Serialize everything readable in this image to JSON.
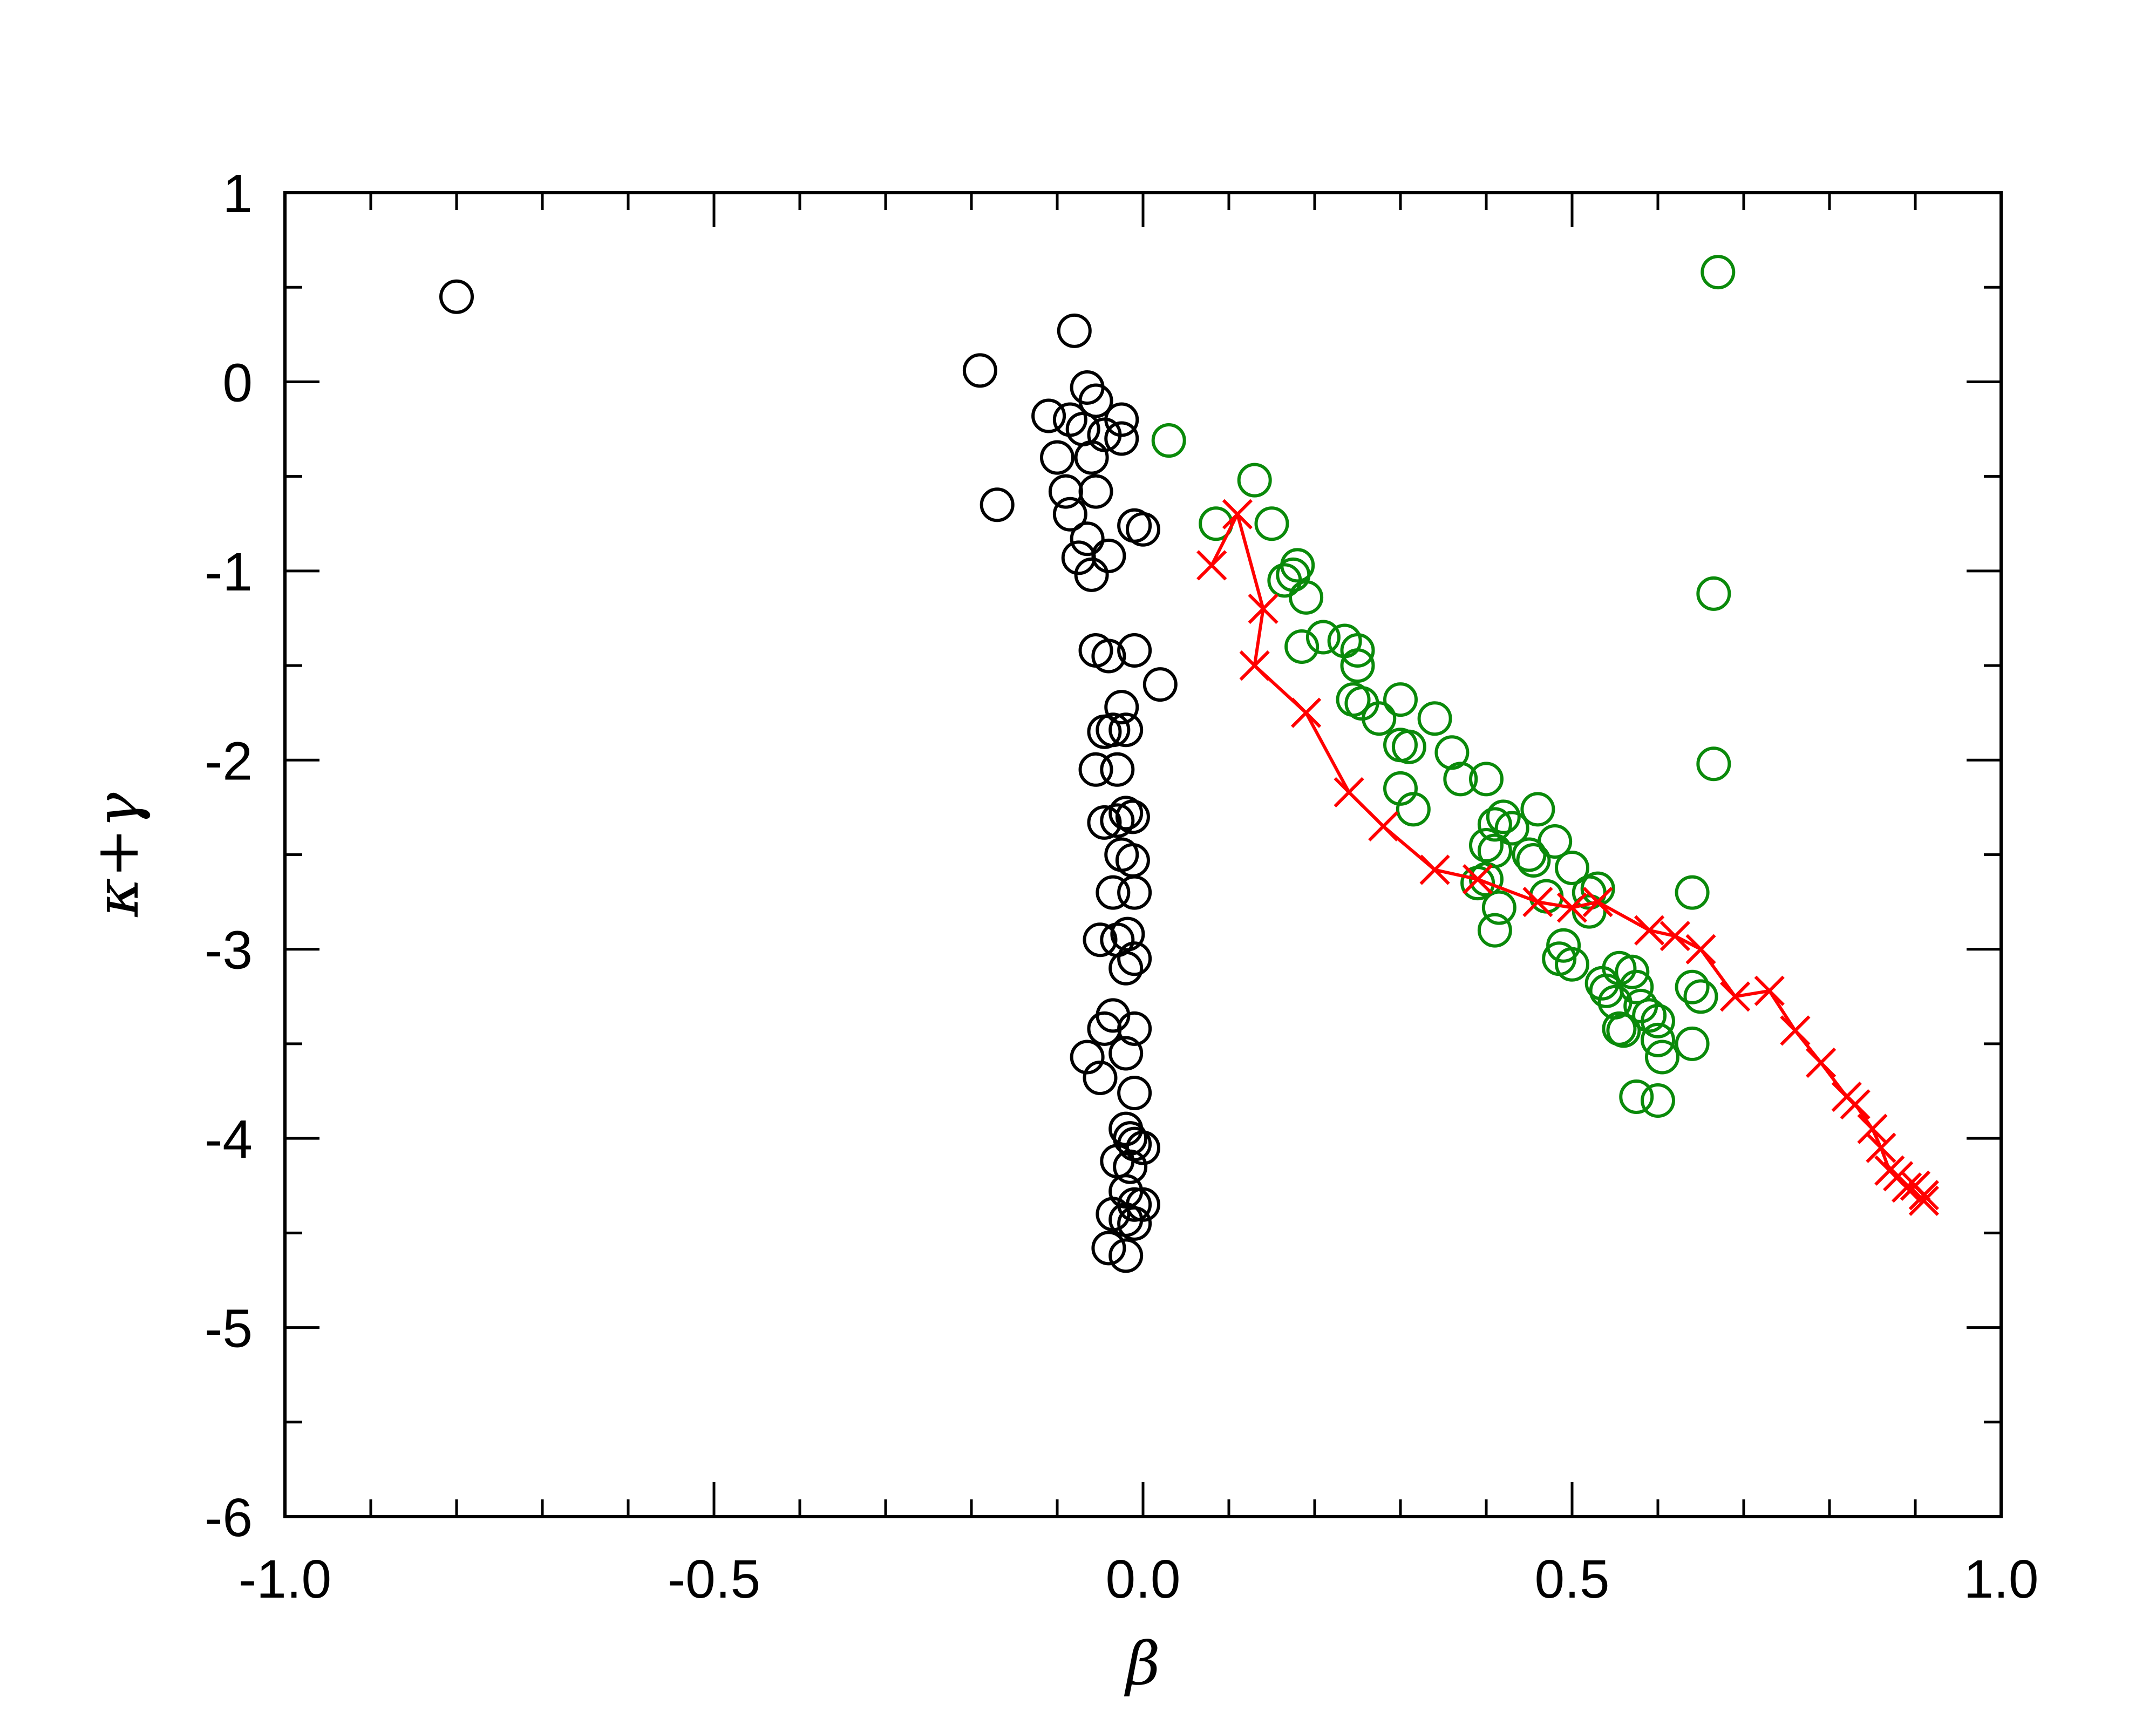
{
  "chart_data": {
    "type": "scatter",
    "xlabel": "β",
    "ylabel": "κ+γ",
    "xlim": [
      -1.0,
      1.0
    ],
    "ylim": [
      -6,
      1
    ],
    "x_ticks": [
      -1.0,
      -0.5,
      0.0,
      0.5,
      1.0
    ],
    "x_tick_labels": [
      "-1.0",
      "-0.5",
      "0.0",
      "0.5",
      "1.0"
    ],
    "y_ticks": [
      1,
      0,
      -1,
      -2,
      -3,
      -4,
      -5,
      -6
    ],
    "y_tick_labels": [
      "1",
      "0",
      "-1",
      "-2",
      "-3",
      "-4",
      "-5",
      "-6"
    ],
    "grid": false,
    "legend": "none",
    "series": [
      {
        "marker": "circle",
        "line": false,
        "color": "#000000",
        "points": [
          [
            -0.8,
            0.45
          ],
          [
            -0.19,
            0.06
          ],
          [
            -0.17,
            -0.65
          ],
          [
            -0.08,
            0.27
          ],
          [
            -0.065,
            -0.03
          ],
          [
            -0.11,
            -0.18
          ],
          [
            -0.085,
            -0.2
          ],
          [
            -0.055,
            -0.1
          ],
          [
            -0.045,
            -0.28
          ],
          [
            -0.025,
            -0.2
          ],
          [
            -0.07,
            -0.25
          ],
          [
            -0.025,
            -0.3
          ],
          [
            -0.1,
            -0.4
          ],
          [
            -0.06,
            -0.4
          ],
          [
            -0.09,
            -0.58
          ],
          [
            -0.055,
            -0.58
          ],
          [
            -0.085,
            -0.7
          ],
          [
            -0.065,
            -0.83
          ],
          [
            -0.075,
            -0.93
          ],
          [
            -0.04,
            -0.92
          ],
          [
            -0.06,
            -1.02
          ],
          [
            -0.01,
            -0.76
          ],
          [
            0.0,
            -0.78
          ],
          [
            -0.055,
            -1.42
          ],
          [
            -0.04,
            -1.45
          ],
          [
            -0.01,
            -1.42
          ],
          [
            0.02,
            -1.6
          ],
          [
            -0.025,
            -1.72
          ],
          [
            -0.045,
            -1.85
          ],
          [
            -0.035,
            -1.84
          ],
          [
            -0.02,
            -1.84
          ],
          [
            -0.055,
            -2.05
          ],
          [
            -0.03,
            -2.05
          ],
          [
            -0.045,
            -2.33
          ],
          [
            -0.03,
            -2.32
          ],
          [
            -0.02,
            -2.28
          ],
          [
            -0.012,
            -2.3
          ],
          [
            -0.025,
            -2.5
          ],
          [
            -0.012,
            -2.53
          ],
          [
            -0.035,
            -2.7
          ],
          [
            -0.01,
            -2.7
          ],
          [
            -0.05,
            -2.95
          ],
          [
            -0.03,
            -2.95
          ],
          [
            -0.018,
            -2.92
          ],
          [
            -0.02,
            -3.1
          ],
          [
            -0.01,
            -3.05
          ],
          [
            -0.035,
            -3.35
          ],
          [
            -0.045,
            -3.42
          ],
          [
            -0.01,
            -3.42
          ],
          [
            -0.065,
            -3.57
          ],
          [
            -0.02,
            -3.55
          ],
          [
            -0.05,
            -3.68
          ],
          [
            -0.01,
            -3.76
          ],
          [
            -0.02,
            -3.95
          ],
          [
            -0.015,
            -4.0
          ],
          [
            -0.01,
            -4.03
          ],
          [
            0.0,
            -4.05
          ],
          [
            -0.03,
            -4.12
          ],
          [
            -0.015,
            -4.15
          ],
          [
            -0.02,
            -4.28
          ],
          [
            -0.01,
            -4.35
          ],
          [
            0.0,
            -4.35
          ],
          [
            -0.035,
            -4.4
          ],
          [
            -0.02,
            -4.43
          ],
          [
            -0.01,
            -4.45
          ],
          [
            -0.04,
            -4.58
          ],
          [
            -0.02,
            -4.62
          ]
        ]
      },
      {
        "marker": "circle",
        "line": false,
        "color": "#0a8a0a",
        "points": [
          [
            0.03,
            -0.31
          ],
          [
            0.085,
            -0.75
          ],
          [
            0.13,
            -0.52
          ],
          [
            0.15,
            -0.75
          ],
          [
            0.165,
            -1.05
          ],
          [
            0.175,
            -1.02
          ],
          [
            0.18,
            -0.97
          ],
          [
            0.19,
            -1.14
          ],
          [
            0.185,
            -1.4
          ],
          [
            0.21,
            -1.35
          ],
          [
            0.235,
            -1.37
          ],
          [
            0.25,
            -1.42
          ],
          [
            0.25,
            -1.5
          ],
          [
            0.245,
            -1.68
          ],
          [
            0.255,
            -1.7
          ],
          [
            0.275,
            -1.78
          ],
          [
            0.3,
            -1.68
          ],
          [
            0.3,
            -1.92
          ],
          [
            0.31,
            -1.93
          ],
          [
            0.34,
            -1.78
          ],
          [
            0.3,
            -2.15
          ],
          [
            0.315,
            -2.26
          ],
          [
            0.36,
            -1.96
          ],
          [
            0.37,
            -2.1
          ],
          [
            0.4,
            -2.1
          ],
          [
            0.41,
            -2.34
          ],
          [
            0.42,
            -2.3
          ],
          [
            0.43,
            -2.36
          ],
          [
            0.4,
            -2.45
          ],
          [
            0.41,
            -2.48
          ],
          [
            0.45,
            -2.5
          ],
          [
            0.46,
            -2.26
          ],
          [
            0.48,
            -2.43
          ],
          [
            0.5,
            -2.57
          ],
          [
            0.455,
            -2.53
          ],
          [
            0.39,
            -2.65
          ],
          [
            0.4,
            -2.63
          ],
          [
            0.415,
            -2.78
          ],
          [
            0.41,
            -2.9
          ],
          [
            0.47,
            -2.72
          ],
          [
            0.52,
            -2.7
          ],
          [
            0.53,
            -2.68
          ],
          [
            0.52,
            -2.8
          ],
          [
            0.49,
            -2.98
          ],
          [
            0.485,
            -3.05
          ],
          [
            0.5,
            -3.08
          ],
          [
            0.535,
            -3.18
          ],
          [
            0.555,
            -3.1
          ],
          [
            0.57,
            -3.12
          ],
          [
            0.54,
            -3.22
          ],
          [
            0.55,
            -3.28
          ],
          [
            0.575,
            -3.2
          ],
          [
            0.58,
            -3.3
          ],
          [
            0.59,
            -3.35
          ],
          [
            0.555,
            -3.42
          ],
          [
            0.56,
            -3.43
          ],
          [
            0.6,
            -3.38
          ],
          [
            0.6,
            -3.48
          ],
          [
            0.605,
            -3.57
          ],
          [
            0.64,
            -3.2
          ],
          [
            0.65,
            -3.25
          ],
          [
            0.64,
            -3.5
          ],
          [
            0.575,
            -3.78
          ],
          [
            0.6,
            -3.8
          ],
          [
            0.64,
            -2.7
          ],
          [
            0.665,
            -2.02
          ],
          [
            0.665,
            -1.12
          ],
          [
            0.67,
            0.58
          ]
        ]
      },
      {
        "marker": "x",
        "line": true,
        "color": "#ff0000",
        "points": [
          [
            0.08,
            -0.97
          ],
          [
            0.11,
            -0.7
          ],
          [
            0.14,
            -1.2
          ],
          [
            0.13,
            -1.5
          ],
          [
            0.19,
            -1.75
          ],
          [
            0.24,
            -2.17
          ],
          [
            0.28,
            -2.35
          ],
          [
            0.34,
            -2.58
          ],
          [
            0.39,
            -2.63
          ],
          [
            0.46,
            -2.75
          ],
          [
            0.5,
            -2.78
          ],
          [
            0.53,
            -2.75
          ],
          [
            0.59,
            -2.9
          ],
          [
            0.62,
            -2.93
          ],
          [
            0.65,
            -3.0
          ],
          [
            0.69,
            -3.25
          ],
          [
            0.73,
            -3.22
          ],
          [
            0.76,
            -3.43
          ],
          [
            0.79,
            -3.6
          ],
          [
            0.82,
            -3.78
          ],
          [
            0.83,
            -3.82
          ],
          [
            0.85,
            -3.95
          ],
          [
            0.86,
            -4.05
          ],
          [
            0.87,
            -4.17
          ],
          [
            0.88,
            -4.2
          ],
          [
            0.89,
            -4.26
          ],
          [
            0.9,
            -4.25
          ],
          [
            0.91,
            -4.3
          ],
          [
            0.91,
            -4.33
          ]
        ]
      }
    ]
  }
}
